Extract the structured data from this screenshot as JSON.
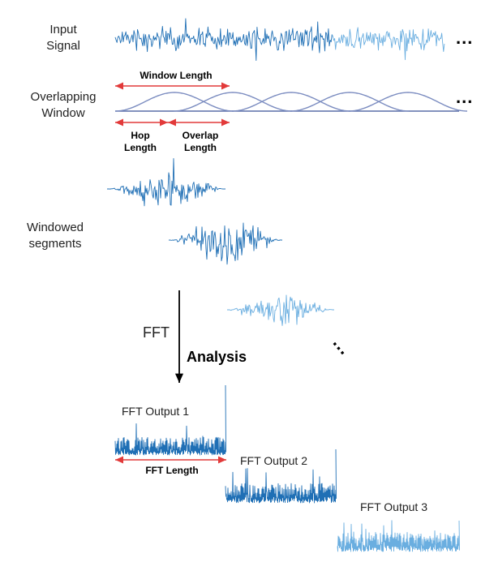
{
  "labels": {
    "input_signal": [
      "Input",
      "Signal"
    ],
    "overlapping_window": [
      "Overlapping",
      "Window"
    ],
    "window_length": "Window Length",
    "hop_length": [
      "Hop",
      "Length"
    ],
    "overlap_length": [
      "Overlap",
      "Length"
    ],
    "windowed_segments": [
      "Windowed",
      "segments"
    ],
    "fft": "FFT",
    "analysis": "Analysis",
    "fft_output_1": "FFT Output 1",
    "fft_output_2": "FFT Output 2",
    "fft_output_3": "FFT Output 3",
    "fft_length": "FFT Length",
    "ellipsis": "..."
  },
  "colors": {
    "signal_dark": "#1f6fb5",
    "signal_light": "#6aaee0",
    "window_curve": "#7b8cc0",
    "baseline": "#5a6fa8",
    "dimension_arrow": "#e23a3a",
    "flow_arrow": "#000000"
  },
  "window_count": 5
}
